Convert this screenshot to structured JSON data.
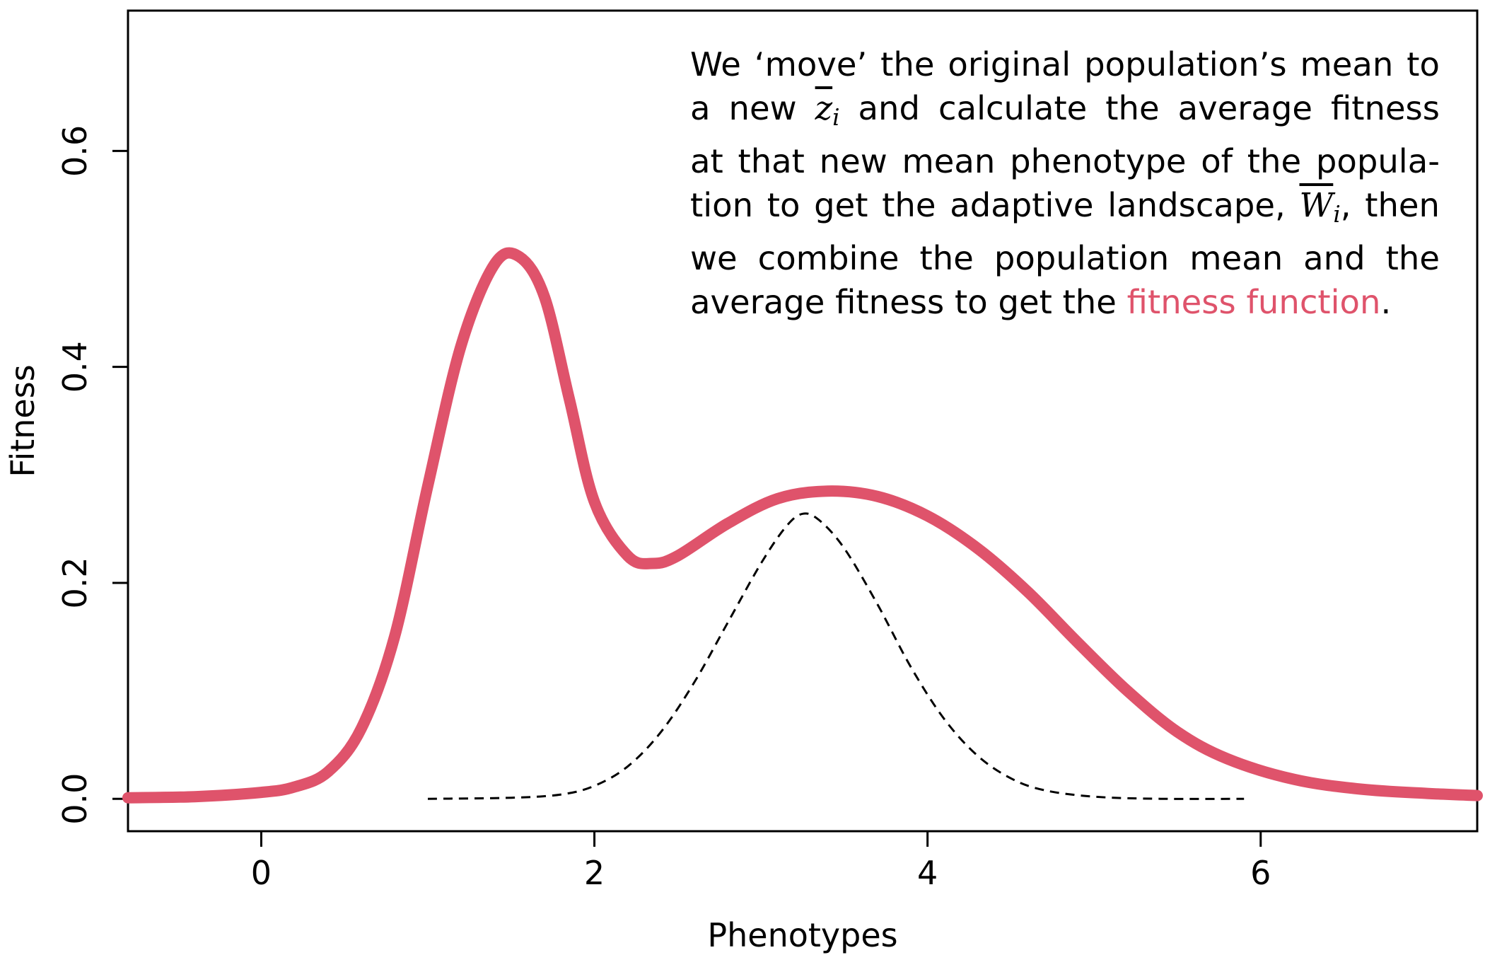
{
  "colors": {
    "fitness_function": "#df536b",
    "population_distribution": "#000000",
    "axes": "#000000"
  },
  "annotation": {
    "line1": "We ‘move’ the original population’s mean to",
    "line2_pre": "a new",
    "line2_math_base": "z",
    "line2_math_sub": "i",
    "line2_post": "and calculate the average fitness",
    "line3": "at that new mean phenotype of the popula-",
    "line4_pre": "tion to get the adaptive landscape,",
    "line4_math_base": "W",
    "line4_math_sub": "i",
    "line4_post": ", then",
    "line5": "we combine the population mean and the",
    "line6_pre": "average fitness to get the",
    "line6_highlight": "fitness function",
    "line6_post": "."
  },
  "chart_data": {
    "type": "line",
    "title": "",
    "xlabel": "Phenotypes",
    "ylabel": "Fitness",
    "xlim": [
      -0.8,
      7.3
    ],
    "ylim": [
      -0.03,
      0.73
    ],
    "x_ticks": [
      0,
      2,
      4,
      6
    ],
    "x_tick_labels": [
      "0",
      "2",
      "4",
      "6"
    ],
    "y_ticks": [
      0.0,
      0.2,
      0.4,
      0.6
    ],
    "y_tick_labels": [
      "0.0",
      "0.2",
      "0.4",
      "0.6"
    ],
    "grid": false,
    "legend": "none",
    "series": [
      {
        "style": "solid-thick",
        "color": "#df536b",
        "points": [
          [
            -0.8,
            0.001
          ],
          [
            -0.4,
            0.002
          ],
          [
            0.0,
            0.006
          ],
          [
            0.2,
            0.011
          ],
          [
            0.4,
            0.025
          ],
          [
            0.6,
            0.065
          ],
          [
            0.8,
            0.15
          ],
          [
            1.0,
            0.29
          ],
          [
            1.2,
            0.42
          ],
          [
            1.4,
            0.495
          ],
          [
            1.55,
            0.502
          ],
          [
            1.7,
            0.465
          ],
          [
            1.85,
            0.37
          ],
          [
            2.0,
            0.275
          ],
          [
            2.2,
            0.225
          ],
          [
            2.35,
            0.218
          ],
          [
            2.5,
            0.225
          ],
          [
            2.8,
            0.255
          ],
          [
            3.1,
            0.278
          ],
          [
            3.4,
            0.285
          ],
          [
            3.7,
            0.28
          ],
          [
            4.0,
            0.262
          ],
          [
            4.3,
            0.232
          ],
          [
            4.6,
            0.192
          ],
          [
            4.9,
            0.145
          ],
          [
            5.2,
            0.1
          ],
          [
            5.5,
            0.062
          ],
          [
            5.8,
            0.037
          ],
          [
            6.2,
            0.018
          ],
          [
            6.6,
            0.009
          ],
          [
            7.0,
            0.005
          ],
          [
            7.3,
            0.003
          ]
        ]
      },
      {
        "style": "dashed",
        "color": "#000000",
        "points": [
          [
            1.0,
            0.0
          ],
          [
            1.5,
            0.001
          ],
          [
            1.8,
            0.004
          ],
          [
            2.0,
            0.012
          ],
          [
            2.2,
            0.03
          ],
          [
            2.4,
            0.062
          ],
          [
            2.6,
            0.108
          ],
          [
            2.8,
            0.163
          ],
          [
            3.0,
            0.218
          ],
          [
            3.15,
            0.252
          ],
          [
            3.25,
            0.264
          ],
          [
            3.35,
            0.258
          ],
          [
            3.5,
            0.232
          ],
          [
            3.7,
            0.18
          ],
          [
            3.9,
            0.122
          ],
          [
            4.1,
            0.074
          ],
          [
            4.3,
            0.04
          ],
          [
            4.5,
            0.019
          ],
          [
            4.7,
            0.008
          ],
          [
            5.0,
            0.002
          ],
          [
            5.4,
            0.0
          ],
          [
            5.9,
            0.0
          ]
        ]
      }
    ]
  }
}
